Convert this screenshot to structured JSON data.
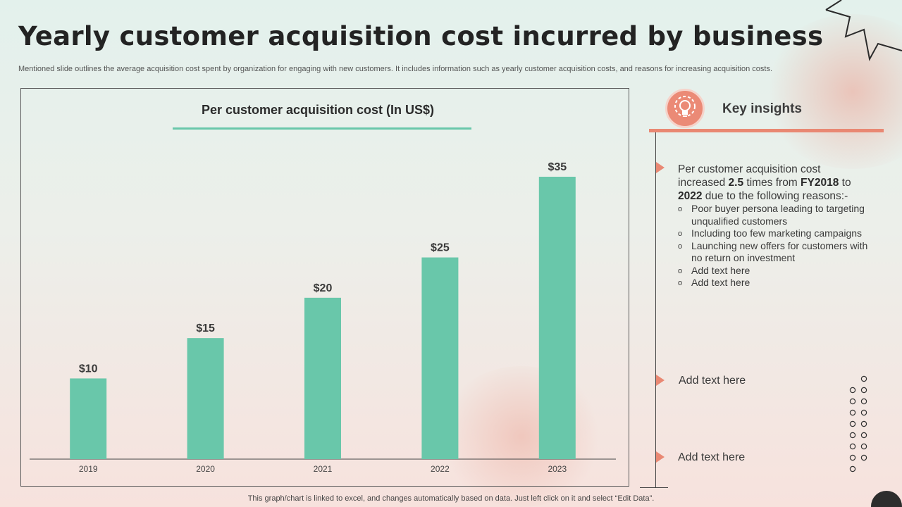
{
  "slide": {
    "title": "Yearly customer acquisition cost incurred by business",
    "subtitle": "Mentioned slide outlines the average acquisition cost spent by organization for engaging with new customers. It includes information such as yearly customer acquisition costs, and reasons for increasing acquisition costs.",
    "footer": "This graph/chart is linked to excel,  and changes automatically based on data. Just left click on it and select “Edit Data”."
  },
  "chart_data": {
    "type": "bar",
    "title": "Per customer acquisition cost (In US$)",
    "categories": [
      "2019",
      "2020",
      "2021",
      "2022",
      "2023"
    ],
    "values": [
      10,
      15,
      20,
      25,
      35
    ],
    "value_labels": [
      "$10",
      "$15",
      "$20",
      "$25",
      "$35"
    ],
    "ylim": [
      0,
      35
    ],
    "grid": false,
    "legend": "none",
    "bar_color": "#69c7aa"
  },
  "insights": {
    "title": "Key insights",
    "icon": "lightbulb-gear-icon",
    "accent_color": "#e98873",
    "main": {
      "t1": "Per customer acquisition cost increased ",
      "b1": "2.5",
      "t2": " times from ",
      "b2": "FY2018",
      "t3": " to ",
      "b3": "2022",
      "t4": " due to the following reasons:-"
    },
    "reasons": [
      "Poor buyer persona leading to targeting unqualified customers",
      "Including too few marketing campaigns",
      "Launching new offers for customers with no return on investment",
      "Add text here",
      "Add text here"
    ],
    "extra1": "Add text here",
    "extra2": "Add text here"
  }
}
